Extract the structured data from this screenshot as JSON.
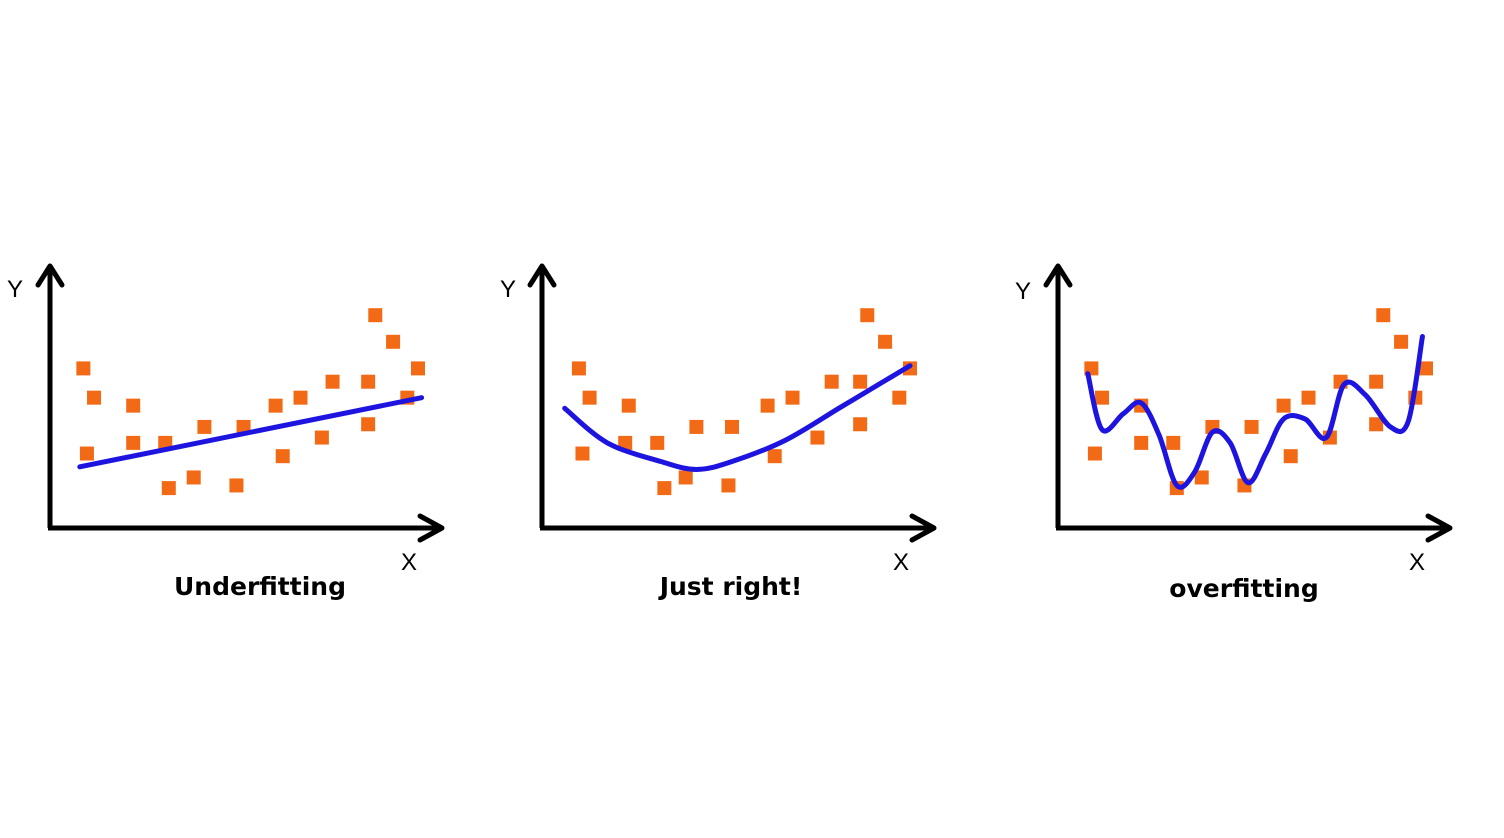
{
  "chart_data": [
    {
      "type": "scatter",
      "title": "Underfitting",
      "xlabel": "X",
      "ylabel": "Y",
      "xlim": [
        0,
        10
      ],
      "ylim": [
        0,
        10
      ],
      "points": [
        [
          0.6,
          6.0
        ],
        [
          0.9,
          4.9
        ],
        [
          0.7,
          2.8
        ],
        [
          2.0,
          4.6
        ],
        [
          2.0,
          3.2
        ],
        [
          2.9,
          3.2
        ],
        [
          3.0,
          1.5
        ],
        [
          3.7,
          1.9
        ],
        [
          4.0,
          3.8
        ],
        [
          4.9,
          1.6
        ],
        [
          5.1,
          3.8
        ],
        [
          6.0,
          4.6
        ],
        [
          6.2,
          2.7
        ],
        [
          6.7,
          4.9
        ],
        [
          7.3,
          3.4
        ],
        [
          7.6,
          5.5
        ],
        [
          8.6,
          5.5
        ],
        [
          8.6,
          3.9
        ],
        [
          8.8,
          8.0
        ],
        [
          9.3,
          7.0
        ],
        [
          9.7,
          4.9
        ],
        [
          10.0,
          6.0
        ]
      ],
      "fit": [
        [
          0.5,
          2.3
        ],
        [
          10.1,
          4.9
        ]
      ],
      "fit_name": "",
      "colors": {
        "points": "#f26a16",
        "fit": "#1e14e0",
        "axes": "#000000"
      }
    },
    {
      "type": "scatter",
      "title": "Just right!",
      "xlabel": "X",
      "ylabel": "Y",
      "xlim": [
        0,
        10
      ],
      "ylim": [
        0,
        10
      ],
      "points": [
        [
          0.7,
          6.0
        ],
        [
          1.0,
          4.9
        ],
        [
          0.8,
          2.8
        ],
        [
          2.1,
          4.6
        ],
        [
          2.0,
          3.2
        ],
        [
          2.9,
          3.2
        ],
        [
          3.1,
          1.5
        ],
        [
          3.7,
          1.9
        ],
        [
          4.0,
          3.8
        ],
        [
          4.9,
          1.6
        ],
        [
          5.0,
          3.8
        ],
        [
          6.0,
          4.6
        ],
        [
          6.2,
          2.7
        ],
        [
          6.7,
          4.9
        ],
        [
          7.4,
          3.4
        ],
        [
          7.8,
          5.5
        ],
        [
          8.6,
          5.5
        ],
        [
          8.6,
          3.9
        ],
        [
          8.8,
          8.0
        ],
        [
          9.3,
          7.0
        ],
        [
          9.7,
          4.9
        ],
        [
          10.0,
          6.0
        ]
      ],
      "fit": [
        [
          0.3,
          4.5
        ],
        [
          1.5,
          3.2
        ],
        [
          3.0,
          2.5
        ],
        [
          4.0,
          2.2
        ],
        [
          5.0,
          2.5
        ],
        [
          6.5,
          3.3
        ],
        [
          8.0,
          4.5
        ],
        [
          9.0,
          5.3
        ],
        [
          10.0,
          6.1
        ]
      ],
      "fit_name": "",
      "colors": {
        "points": "#f26a16",
        "fit": "#1e14e0",
        "axes": "#000000"
      }
    },
    {
      "type": "scatter",
      "title": "overfitting",
      "xlabel": "X",
      "ylabel": "Y",
      "xlim": [
        0,
        10
      ],
      "ylim": [
        0,
        10
      ],
      "points": [
        [
          0.6,
          6.0
        ],
        [
          0.9,
          4.9
        ],
        [
          0.7,
          2.8
        ],
        [
          2.0,
          4.6
        ],
        [
          2.0,
          3.2
        ],
        [
          2.9,
          3.2
        ],
        [
          3.0,
          1.5
        ],
        [
          3.7,
          1.9
        ],
        [
          4.0,
          3.8
        ],
        [
          4.9,
          1.6
        ],
        [
          5.1,
          3.8
        ],
        [
          6.0,
          4.6
        ],
        [
          6.2,
          2.7
        ],
        [
          6.7,
          4.9
        ],
        [
          7.3,
          3.4
        ],
        [
          7.6,
          5.5
        ],
        [
          8.6,
          5.5
        ],
        [
          8.6,
          3.9
        ],
        [
          8.8,
          8.0
        ],
        [
          9.3,
          7.0
        ],
        [
          9.7,
          4.9
        ],
        [
          10.0,
          6.0
        ]
      ],
      "fit": [
        [
          0.5,
          5.8
        ],
        [
          0.9,
          3.7
        ],
        [
          1.5,
          4.3
        ],
        [
          2.0,
          4.7
        ],
        [
          2.5,
          3.5
        ],
        [
          3.0,
          1.6
        ],
        [
          3.5,
          2.1
        ],
        [
          4.0,
          3.6
        ],
        [
          4.5,
          3.2
        ],
        [
          5.0,
          1.7
        ],
        [
          5.5,
          2.8
        ],
        [
          6.0,
          4.1
        ],
        [
          6.6,
          4.1
        ],
        [
          7.2,
          3.4
        ],
        [
          7.7,
          5.4
        ],
        [
          8.3,
          5.0
        ],
        [
          9.0,
          3.8
        ],
        [
          9.5,
          4.0
        ],
        [
          9.9,
          7.2
        ]
      ],
      "fit_name": "",
      "colors": {
        "points": "#f26a16",
        "fit": "#1e14e0",
        "axes": "#000000"
      }
    }
  ]
}
